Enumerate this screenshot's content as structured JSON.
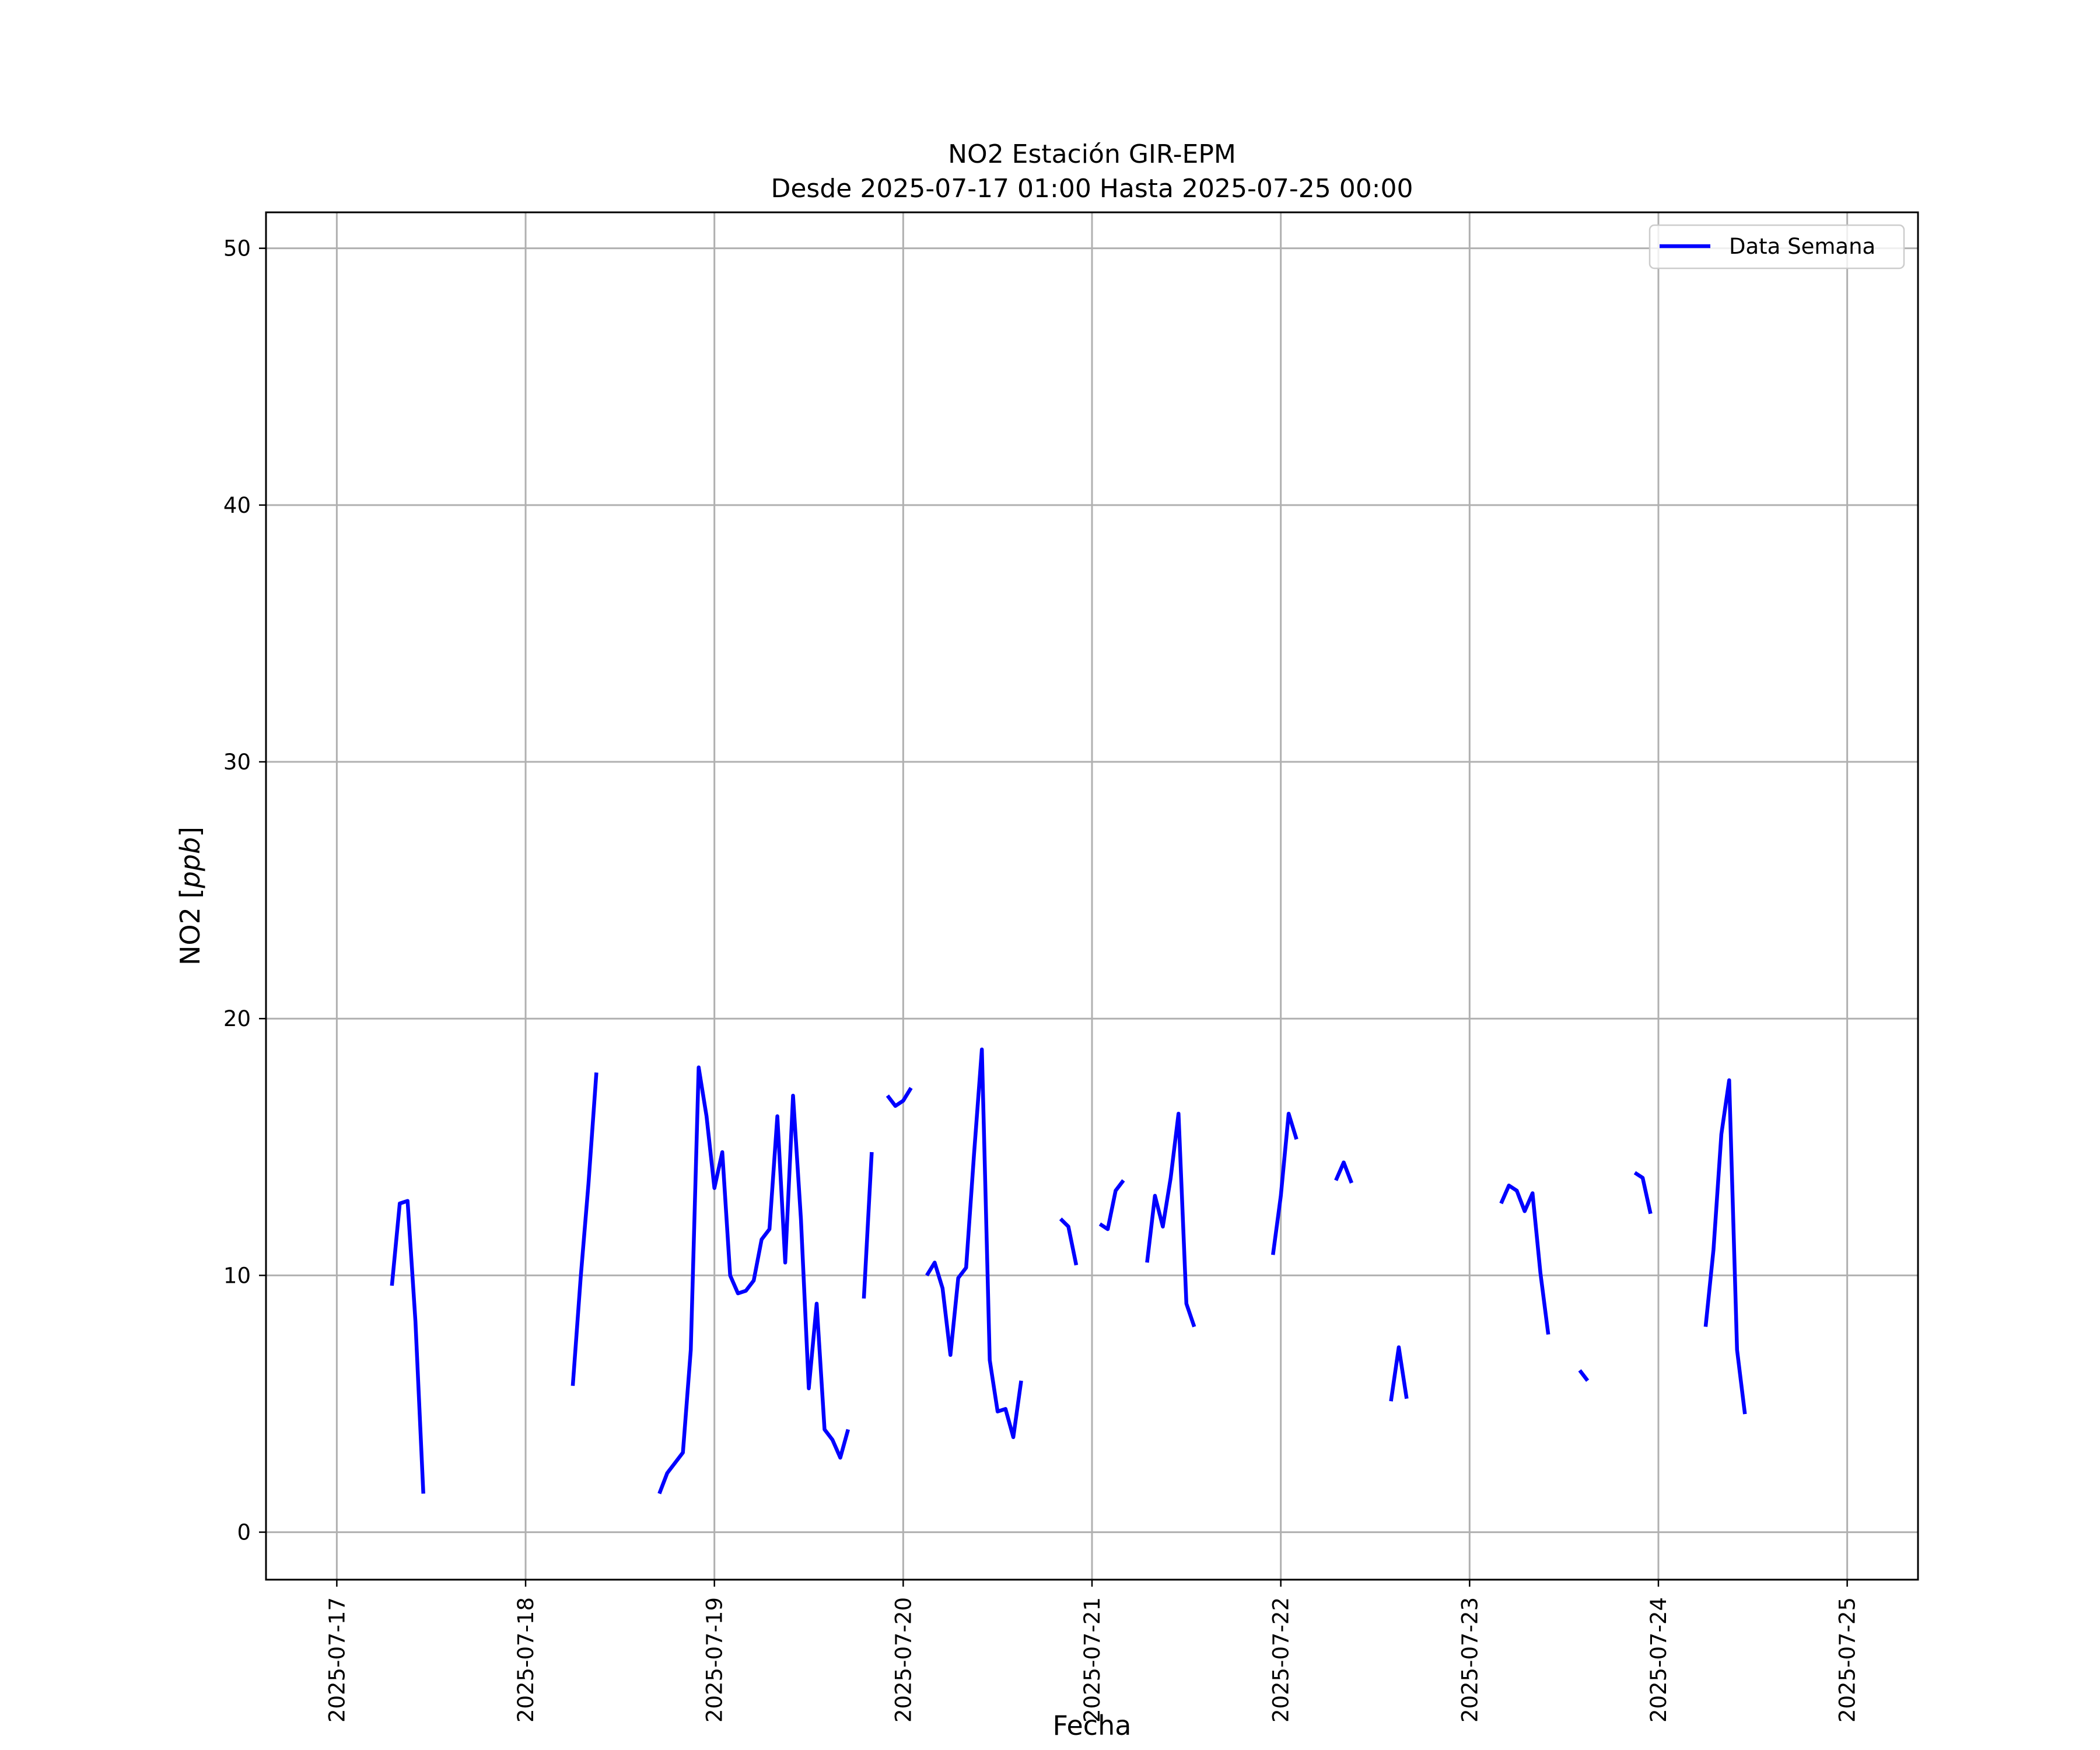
{
  "chart_data": {
    "type": "line",
    "title": "NO2 Estación GIR-EPM",
    "subtitle": "Desde 2025-07-17 01:00 Hasta 2025-07-25 00:00",
    "xlabel": "Fecha",
    "ylabel_prefix": "NO2 [",
    "ylabel_unit": "ppb",
    "ylabel_suffix": "]",
    "xlim": [
      "2025-07-16 15:00",
      "2025-07-25 09:00"
    ],
    "ylim": [
      -1.85,
      51.4
    ],
    "x_ticks": [
      "2025-07-17",
      "2025-07-18",
      "2025-07-19",
      "2025-07-20",
      "2025-07-21",
      "2025-07-22",
      "2025-07-23",
      "2025-07-24",
      "2025-07-25"
    ],
    "y_ticks": [
      0,
      10,
      20,
      30,
      40,
      50
    ],
    "grid": true,
    "legend": "top-right",
    "series": [
      {
        "name": "Data Semana",
        "color": "#0000ff",
        "segments": [
          [
            [
              "2025-07-17 07:00",
              9.6
            ],
            [
              "2025-07-17 08:00",
              12.8
            ],
            [
              "2025-07-17 09:00",
              12.9
            ],
            [
              "2025-07-17 10:00",
              8.2
            ],
            [
              "2025-07-17 11:00",
              1.5
            ]
          ],
          [
            [
              "2025-07-18 06:00",
              5.7
            ],
            [
              "2025-07-18 07:00",
              9.9
            ],
            [
              "2025-07-18 08:00",
              13.6
            ],
            [
              "2025-07-18 09:00",
              17.9
            ]
          ],
          [
            [
              "2025-07-18 17:00",
              1.5
            ],
            [
              "2025-07-18 18:00",
              2.3
            ],
            [
              "2025-07-18 19:00",
              2.7
            ],
            [
              "2025-07-18 20:00",
              3.1
            ],
            [
              "2025-07-18 21:00",
              7.1
            ],
            [
              "2025-07-18 22:00",
              18.1
            ],
            [
              "2025-07-18 23:00",
              16.2
            ],
            [
              "2025-07-19 00:00",
              13.4
            ],
            [
              "2025-07-19 01:00",
              14.8
            ],
            [
              "2025-07-19 02:00",
              10.0
            ],
            [
              "2025-07-19 03:00",
              9.3
            ],
            [
              "2025-07-19 04:00",
              9.4
            ],
            [
              "2025-07-19 05:00",
              9.8
            ],
            [
              "2025-07-19 06:00",
              11.4
            ],
            [
              "2025-07-19 07:00",
              11.8
            ],
            [
              "2025-07-19 08:00",
              16.2
            ],
            [
              "2025-07-19 09:00",
              10.5
            ],
            [
              "2025-07-19 10:00",
              17.0
            ],
            [
              "2025-07-19 11:00",
              12.2
            ],
            [
              "2025-07-19 12:00",
              5.6
            ],
            [
              "2025-07-19 13:00",
              8.9
            ],
            [
              "2025-07-19 14:00",
              4.0
            ],
            [
              "2025-07-19 15:00",
              3.6
            ],
            [
              "2025-07-19 16:00",
              2.9
            ],
            [
              "2025-07-19 17:00",
              4.0
            ]
          ],
          [
            [
              "2025-07-19 19:00",
              9.1
            ],
            [
              "2025-07-19 20:00",
              14.8
            ]
          ],
          [
            [
              "2025-07-19 22:00",
              17.0
            ],
            [
              "2025-07-19 23:00",
              16.6
            ],
            [
              "2025-07-20 00:00",
              16.8
            ],
            [
              "2025-07-20 01:00",
              17.3
            ]
          ],
          [
            [
              "2025-07-20 03:00",
              10.0
            ],
            [
              "2025-07-20 04:00",
              10.5
            ],
            [
              "2025-07-20 05:00",
              9.5
            ],
            [
              "2025-07-20 06:00",
              6.9
            ],
            [
              "2025-07-20 07:00",
              9.9
            ],
            [
              "2025-07-20 08:00",
              10.3
            ],
            [
              "2025-07-20 09:00",
              14.7
            ],
            [
              "2025-07-20 10:00",
              18.8
            ],
            [
              "2025-07-20 11:00",
              6.7
            ],
            [
              "2025-07-20 12:00",
              4.7
            ],
            [
              "2025-07-20 13:00",
              4.8
            ],
            [
              "2025-07-20 14:00",
              3.7
            ],
            [
              "2025-07-20 15:00",
              5.9
            ]
          ],
          [
            [
              "2025-07-20 20:00",
              12.2
            ],
            [
              "2025-07-20 21:00",
              11.9
            ],
            [
              "2025-07-20 22:00",
              10.4
            ]
          ],
          [
            [
              "2025-07-21 01:00",
              12.0
            ],
            [
              "2025-07-21 02:00",
              11.8
            ],
            [
              "2025-07-21 03:00",
              13.3
            ],
            [
              "2025-07-21 04:00",
              13.7
            ]
          ],
          [
            [
              "2025-07-21 07:00",
              10.5
            ],
            [
              "2025-07-21 08:00",
              13.1
            ],
            [
              "2025-07-21 09:00",
              11.9
            ],
            [
              "2025-07-21 10:00",
              13.8
            ],
            [
              "2025-07-21 11:00",
              16.3
            ],
            [
              "2025-07-21 12:00",
              8.9
            ],
            [
              "2025-07-21 13:00",
              8.0
            ]
          ],
          [
            [
              "2025-07-21 23:00",
              10.8
            ],
            [
              "2025-07-22 00:00",
              13.1
            ],
            [
              "2025-07-22 01:00",
              16.3
            ],
            [
              "2025-07-22 02:00",
              15.3
            ]
          ],
          [
            [
              "2025-07-22 07:00",
              13.7
            ],
            [
              "2025-07-22 08:00",
              14.4
            ],
            [
              "2025-07-22 09:00",
              13.6
            ]
          ],
          [
            [
              "2025-07-22 14:00",
              5.1
            ],
            [
              "2025-07-22 15:00",
              7.2
            ],
            [
              "2025-07-22 16:00",
              5.2
            ]
          ],
          [
            [
              "2025-07-23 04:00",
              12.8
            ],
            [
              "2025-07-23 05:00",
              13.5
            ],
            [
              "2025-07-23 06:00",
              13.3
            ],
            [
              "2025-07-23 07:00",
              12.5
            ],
            [
              "2025-07-23 08:00",
              13.2
            ],
            [
              "2025-07-23 09:00",
              10.1
            ],
            [
              "2025-07-23 10:00",
              7.7
            ]
          ],
          [
            [
              "2025-07-23 14:00",
              6.3
            ],
            [
              "2025-07-23 15:00",
              5.9
            ]
          ],
          [
            [
              "2025-07-23 21:00",
              14.0
            ],
            [
              "2025-07-23 22:00",
              13.8
            ],
            [
              "2025-07-23 23:00",
              12.4
            ]
          ],
          [
            [
              "2025-07-24 06:00",
              8.0
            ],
            [
              "2025-07-24 07:00",
              11.0
            ],
            [
              "2025-07-24 08:00",
              15.5
            ],
            [
              "2025-07-24 09:00",
              17.6
            ],
            [
              "2025-07-24 10:00",
              7.1
            ],
            [
              "2025-07-24 11:00",
              4.6
            ]
          ]
        ]
      }
    ]
  }
}
